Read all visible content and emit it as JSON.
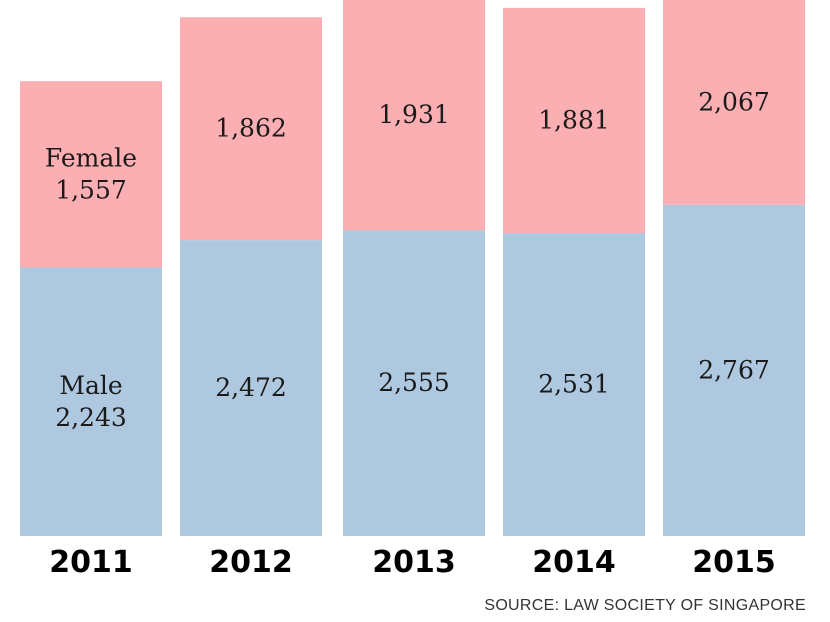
{
  "chart_data": {
    "type": "bar",
    "stacked": true,
    "categories": [
      "2011",
      "2012",
      "2013",
      "2014",
      "2015"
    ],
    "series": [
      {
        "name": "Male",
        "values": [
          2243,
          2472,
          2555,
          2531,
          2767
        ],
        "value_labels": [
          "2,243",
          "2,472",
          "2,555",
          "2,531",
          "2,767"
        ],
        "color": "#aec8e0"
      },
      {
        "name": "Female",
        "values": [
          1557,
          1862,
          1931,
          1881,
          2067
        ],
        "value_labels": [
          "1,557",
          "1,862",
          "1,931",
          "1,881",
          "2,067"
        ],
        "color": "#fbafb3"
      }
    ],
    "title": "",
    "xlabel": "",
    "ylabel": "",
    "grid": false
  },
  "source": "SOURCE: LAW SOCIETY OF SINGAPORE"
}
